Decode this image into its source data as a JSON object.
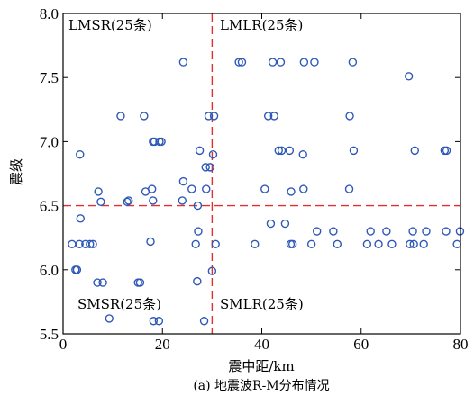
{
  "chart_data": {
    "type": "scatter",
    "title": "",
    "xlabel": "震中距/km",
    "ylabel": "震级",
    "xlim": [
      0,
      80
    ],
    "ylim": [
      5.5,
      8.0
    ],
    "xticks": [
      0,
      20,
      40,
      60,
      80
    ],
    "yticks": [
      5.5,
      6.0,
      6.5,
      7.0,
      7.5,
      8.0
    ],
    "ytick_labels": [
      "5.5",
      "6.0",
      "6.5",
      "7.0",
      "7.5",
      "8.0"
    ],
    "divider_x": 30,
    "divider_y": 6.5,
    "grid": false,
    "marker": "open-circle",
    "quadrants": [
      {
        "label": "LMSR(25条)",
        "corner": "top-left"
      },
      {
        "label": "LMLR(25条)",
        "corner": "top-right"
      },
      {
        "label": "SMSR(25条)",
        "corner": "bottom-left"
      },
      {
        "label": "SMLR(25条)",
        "corner": "bottom-right"
      }
    ],
    "caption": "(a) 地震波R-M分布情况",
    "points": [
      {
        "x": 24.2,
        "y": 7.62
      },
      {
        "x": 35.4,
        "y": 7.62
      },
      {
        "x": 36.0,
        "y": 7.62
      },
      {
        "x": 42.2,
        "y": 7.62
      },
      {
        "x": 43.8,
        "y": 7.62
      },
      {
        "x": 48.5,
        "y": 7.62
      },
      {
        "x": 50.6,
        "y": 7.62
      },
      {
        "x": 58.3,
        "y": 7.62
      },
      {
        "x": 69.6,
        "y": 7.51
      },
      {
        "x": 11.6,
        "y": 7.2
      },
      {
        "x": 16.3,
        "y": 7.2
      },
      {
        "x": 29.3,
        "y": 7.2
      },
      {
        "x": 30.4,
        "y": 7.2
      },
      {
        "x": 41.3,
        "y": 7.2
      },
      {
        "x": 42.5,
        "y": 7.2
      },
      {
        "x": 57.7,
        "y": 7.2
      },
      {
        "x": 18.1,
        "y": 7.0
      },
      {
        "x": 18.4,
        "y": 7.0
      },
      {
        "x": 19.4,
        "y": 7.0
      },
      {
        "x": 19.8,
        "y": 7.0
      },
      {
        "x": 3.4,
        "y": 6.9
      },
      {
        "x": 27.5,
        "y": 6.93
      },
      {
        "x": 30.2,
        "y": 6.9
      },
      {
        "x": 43.4,
        "y": 6.93
      },
      {
        "x": 44.0,
        "y": 6.93
      },
      {
        "x": 45.6,
        "y": 6.93
      },
      {
        "x": 48.3,
        "y": 6.9
      },
      {
        "x": 58.5,
        "y": 6.93
      },
      {
        "x": 70.8,
        "y": 6.93
      },
      {
        "x": 76.8,
        "y": 6.93
      },
      {
        "x": 77.2,
        "y": 6.93
      },
      {
        "x": 28.7,
        "y": 6.8
      },
      {
        "x": 29.6,
        "y": 6.8
      },
      {
        "x": 24.2,
        "y": 6.69
      },
      {
        "x": 7.1,
        "y": 6.61
      },
      {
        "x": 16.6,
        "y": 6.61
      },
      {
        "x": 17.9,
        "y": 6.63
      },
      {
        "x": 25.9,
        "y": 6.63
      },
      {
        "x": 28.8,
        "y": 6.63
      },
      {
        "x": 40.6,
        "y": 6.63
      },
      {
        "x": 45.9,
        "y": 6.61
      },
      {
        "x": 48.4,
        "y": 6.63
      },
      {
        "x": 57.6,
        "y": 6.63
      },
      {
        "x": 7.6,
        "y": 6.53
      },
      {
        "x": 12.9,
        "y": 6.53
      },
      {
        "x": 13.2,
        "y": 6.54
      },
      {
        "x": 18.1,
        "y": 6.54
      },
      {
        "x": 24.0,
        "y": 6.54
      },
      {
        "x": 27.1,
        "y": 6.5
      },
      {
        "x": 3.5,
        "y": 6.4
      },
      {
        "x": 41.8,
        "y": 6.36
      },
      {
        "x": 44.7,
        "y": 6.36
      },
      {
        "x": 27.2,
        "y": 6.3
      },
      {
        "x": 51.1,
        "y": 6.3
      },
      {
        "x": 54.4,
        "y": 6.3
      },
      {
        "x": 61.9,
        "y": 6.3
      },
      {
        "x": 65.1,
        "y": 6.3
      },
      {
        "x": 70.4,
        "y": 6.3
      },
      {
        "x": 73.1,
        "y": 6.3
      },
      {
        "x": 77.1,
        "y": 6.3
      },
      {
        "x": 79.9,
        "y": 6.3
      },
      {
        "x": 1.8,
        "y": 6.2
      },
      {
        "x": 3.3,
        "y": 6.2
      },
      {
        "x": 4.5,
        "y": 6.2
      },
      {
        "x": 5.4,
        "y": 6.2
      },
      {
        "x": 6.0,
        "y": 6.2
      },
      {
        "x": 17.6,
        "y": 6.22
      },
      {
        "x": 26.7,
        "y": 6.2
      },
      {
        "x": 30.7,
        "y": 6.2
      },
      {
        "x": 38.6,
        "y": 6.2
      },
      {
        "x": 45.8,
        "y": 6.2
      },
      {
        "x": 46.2,
        "y": 6.2
      },
      {
        "x": 50.0,
        "y": 6.2
      },
      {
        "x": 55.2,
        "y": 6.2
      },
      {
        "x": 61.2,
        "y": 6.2
      },
      {
        "x": 63.5,
        "y": 6.2
      },
      {
        "x": 66.2,
        "y": 6.2
      },
      {
        "x": 69.8,
        "y": 6.2
      },
      {
        "x": 70.6,
        "y": 6.2
      },
      {
        "x": 72.6,
        "y": 6.2
      },
      {
        "x": 79.3,
        "y": 6.2
      },
      {
        "x": 2.5,
        "y": 6.0
      },
      {
        "x": 2.8,
        "y": 6.0
      },
      {
        "x": 30.0,
        "y": 5.99
      },
      {
        "x": 6.9,
        "y": 5.9
      },
      {
        "x": 8.0,
        "y": 5.9
      },
      {
        "x": 15.1,
        "y": 5.9
      },
      {
        "x": 15.5,
        "y": 5.9
      },
      {
        "x": 27.0,
        "y": 5.91
      },
      {
        "x": 9.3,
        "y": 5.62
      },
      {
        "x": 18.2,
        "y": 5.6
      },
      {
        "x": 19.3,
        "y": 5.6
      },
      {
        "x": 28.4,
        "y": 5.6
      }
    ]
  }
}
